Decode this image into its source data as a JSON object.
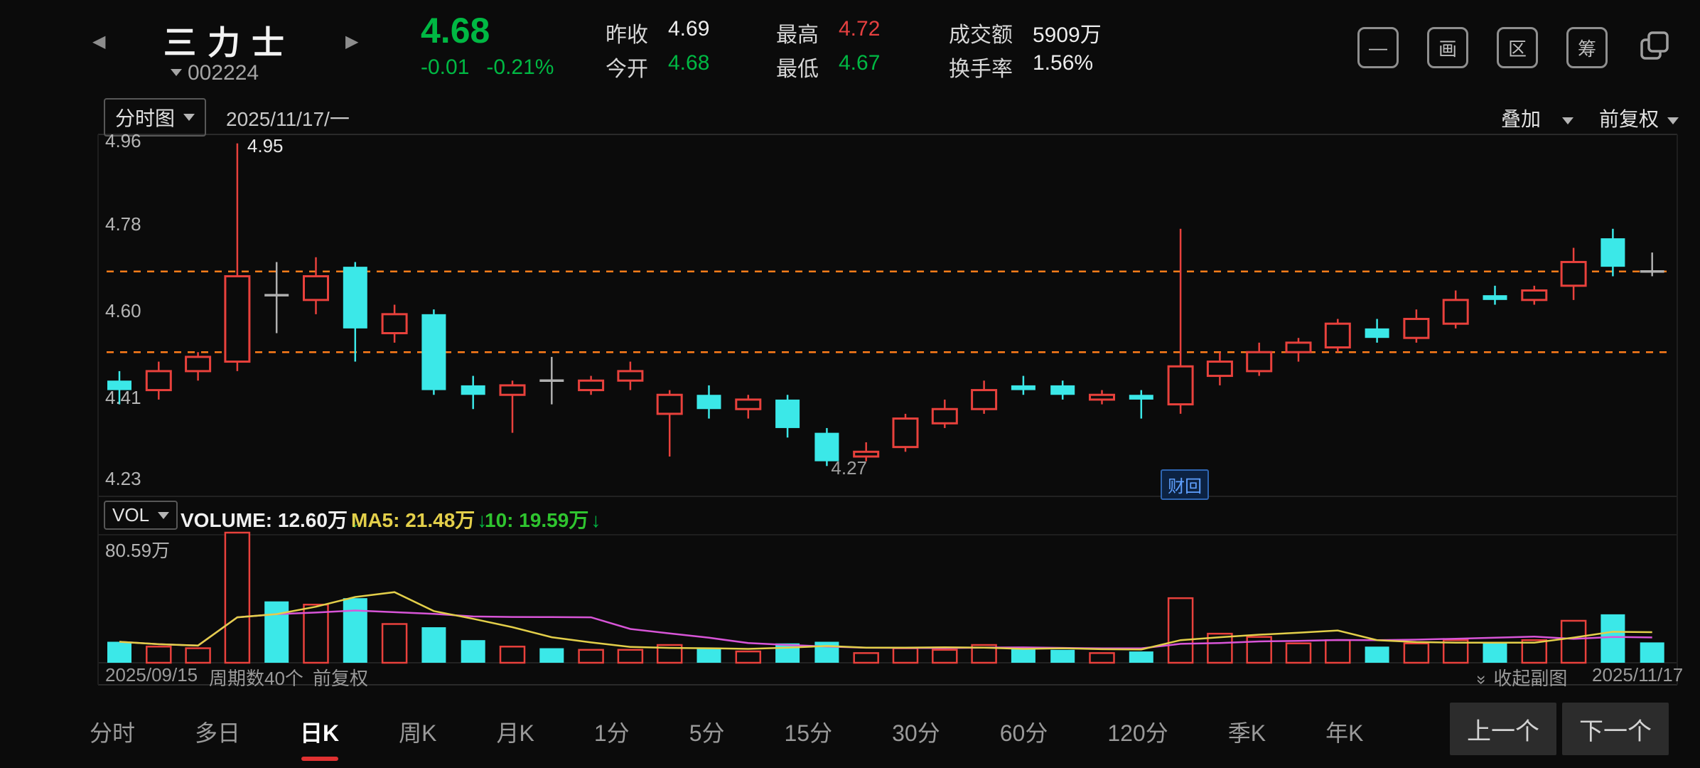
{
  "header": {
    "prev_icon": "◀",
    "next_icon": "▶",
    "title": "三力士",
    "code": "002224",
    "price": "4.68",
    "change": "-0.01",
    "change_pct": "-0.21%",
    "stats": [
      {
        "label": "昨收",
        "value": "4.69",
        "color": "#ededed"
      },
      {
        "label": "今开",
        "value": "4.68",
        "color": "#00b843"
      },
      {
        "label": "最高",
        "value": "4.72",
        "color": "#e64040"
      },
      {
        "label": "最低",
        "value": "4.67",
        "color": "#00b843"
      },
      {
        "label": "成交额",
        "value": "5909万",
        "color": "#ededed"
      },
      {
        "label": "换手率",
        "value": "1.56%",
        "color": "#ededed"
      }
    ],
    "toolbar_icons": {
      "minimize": "—",
      "draw": "画",
      "region": "区",
      "chips": "筹"
    }
  },
  "chart_toolbar": {
    "period_selector": "分时图",
    "date": "2025/11/17/一",
    "overlay": "叠加",
    "adjust": "前复权"
  },
  "volume_header": {
    "vol": "VOL",
    "volume": "VOLUME: 12.60万",
    "ma5": "MA5: 21.48万",
    "ma10": "10: 19.59万",
    "arrow": "↓"
  },
  "footer": {
    "period_count": "周期数40个",
    "adjust": "前复权",
    "collapse": "收起副图"
  },
  "bottom_nav": {
    "tabs": [
      "分时",
      "多日",
      "日K",
      "周K",
      "月K",
      "1分",
      "5分",
      "15分",
      "30分",
      "60分",
      "120分",
      "季K",
      "年K"
    ],
    "active_index": 2,
    "prev": "上一个",
    "next": "下一个"
  },
  "chart_data": {
    "type": "candlestick+volume",
    "title": "三力士 002224 日K",
    "period_count": 40,
    "date_start": "2025/09/15",
    "date_end": "2025/11/17",
    "y_axis_labels": [
      "4.96",
      "4.78",
      "4.60",
      "4.41",
      "4.23"
    ],
    "y_min": 4.23,
    "y_max": 4.96,
    "reference_lines": [
      4.68,
      4.51
    ],
    "annotations": {
      "high_label": "4.95",
      "low_label": "4.27",
      "event_badge": "财回"
    },
    "high_index": 3,
    "low_index": 18,
    "event_index": 27,
    "candles": [
      [
        4.45,
        4.43,
        4.47,
        4.4
      ],
      [
        4.43,
        4.47,
        4.49,
        4.41
      ],
      [
        4.47,
        4.5,
        4.51,
        4.45
      ],
      [
        4.49,
        4.67,
        4.95,
        4.47
      ],
      [
        4.63,
        4.63,
        4.7,
        4.55
      ],
      [
        4.62,
        4.67,
        4.71,
        4.59
      ],
      [
        4.69,
        4.56,
        4.7,
        4.49
      ],
      [
        4.55,
        4.59,
        4.61,
        4.53
      ],
      [
        4.59,
        4.43,
        4.6,
        4.42
      ],
      [
        4.44,
        4.42,
        4.46,
        4.39
      ],
      [
        4.42,
        4.44,
        4.45,
        4.34
      ],
      [
        4.45,
        4.45,
        4.5,
        4.4
      ],
      [
        4.43,
        4.45,
        4.46,
        4.42
      ],
      [
        4.45,
        4.47,
        4.49,
        4.43
      ],
      [
        4.38,
        4.42,
        4.43,
        4.29
      ],
      [
        4.42,
        4.39,
        4.44,
        4.37
      ],
      [
        4.39,
        4.41,
        4.42,
        4.37
      ],
      [
        4.41,
        4.35,
        4.42,
        4.33
      ],
      [
        4.34,
        4.28,
        4.35,
        4.27
      ],
      [
        4.29,
        4.3,
        4.32,
        4.28
      ],
      [
        4.31,
        4.37,
        4.38,
        4.3
      ],
      [
        4.36,
        4.39,
        4.41,
        4.35
      ],
      [
        4.39,
        4.43,
        4.45,
        4.38
      ],
      [
        4.44,
        4.43,
        4.46,
        4.42
      ],
      [
        4.44,
        4.42,
        4.45,
        4.41
      ],
      [
        4.41,
        4.42,
        4.43,
        4.4
      ],
      [
        4.42,
        4.41,
        4.43,
        4.37
      ],
      [
        4.4,
        4.48,
        4.77,
        4.38
      ],
      [
        4.46,
        4.49,
        4.51,
        4.44
      ],
      [
        4.47,
        4.51,
        4.53,
        4.46
      ],
      [
        4.51,
        4.53,
        4.54,
        4.49
      ],
      [
        4.52,
        4.57,
        4.58,
        4.51
      ],
      [
        4.56,
        4.54,
        4.58,
        4.53
      ],
      [
        4.54,
        4.58,
        4.6,
        4.53
      ],
      [
        4.57,
        4.62,
        4.64,
        4.56
      ],
      [
        4.63,
        4.62,
        4.65,
        4.61
      ],
      [
        4.62,
        4.64,
        4.65,
        4.61
      ],
      [
        4.65,
        4.7,
        4.73,
        4.62
      ],
      [
        4.75,
        4.69,
        4.77,
        4.67
      ],
      [
        4.68,
        4.68,
        4.72,
        4.67
      ]
    ],
    "volumes": [
      13,
      10,
      9,
      80.59,
      38,
      36,
      40,
      24,
      22,
      14,
      10,
      9,
      8,
      8,
      11,
      9,
      7,
      12,
      13,
      6,
      9,
      8,
      11,
      9,
      8,
      6,
      7,
      40,
      18,
      16,
      12,
      14,
      10,
      12,
      14,
      12,
      14,
      26,
      30,
      12.6
    ],
    "volume_axis_label": "80.59万",
    "volume_max": 80.59,
    "colors": {
      "up": "#e8413c",
      "down": "#3be8e8",
      "flat": "#b0b0b0",
      "ma5": "#e3cf4a",
      "ma10": "#d855d8",
      "dashed": "#ff7d1a"
    }
  }
}
